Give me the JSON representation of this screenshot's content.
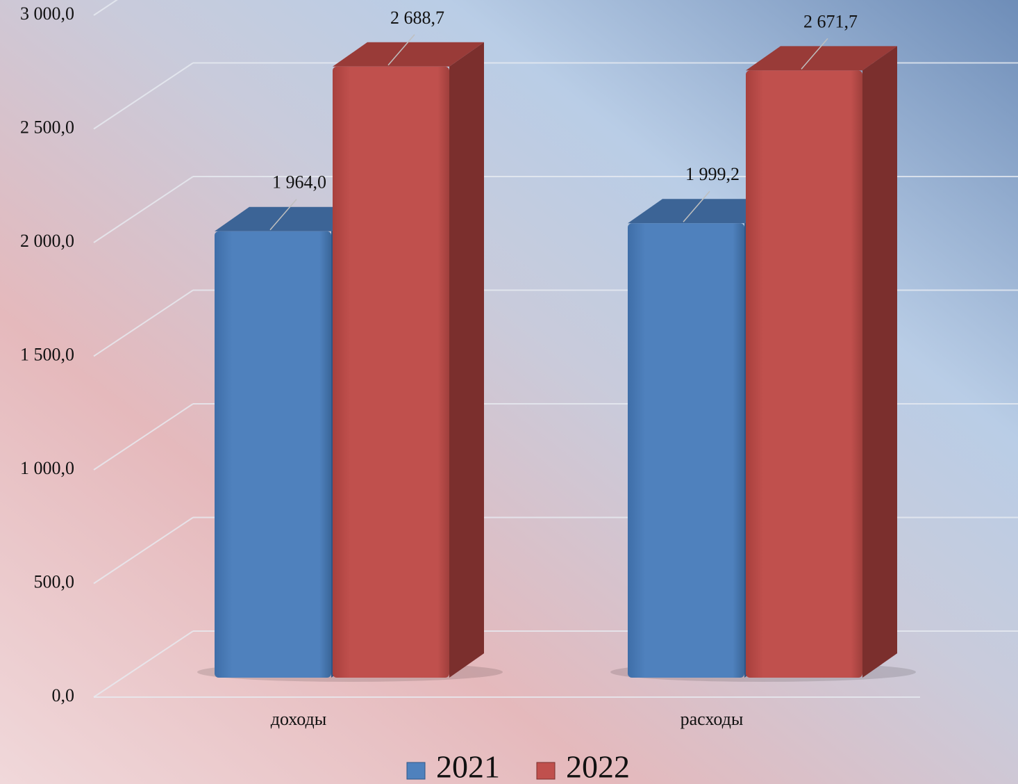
{
  "chart_data": {
    "type": "bar3d",
    "categories": [
      "доходы",
      "расходы"
    ],
    "series": [
      {
        "name": "2021",
        "color": "#4f81bd",
        "values": [
          1964.0,
          1999.2
        ],
        "value_labels": [
          "1 964,0",
          "1 999,2"
        ]
      },
      {
        "name": "2022",
        "color": "#c0504d",
        "values": [
          2688.7,
          2671.7
        ],
        "value_labels": [
          "2 688,7",
          "2 671,7"
        ]
      }
    ],
    "ylim": [
      0,
      3000
    ],
    "yticks": [
      {
        "value": 0,
        "label": "0,0"
      },
      {
        "value": 500,
        "label": "500,0"
      },
      {
        "value": 1000,
        "label": "1 000,0"
      },
      {
        "value": 1500,
        "label": "1 500,0"
      },
      {
        "value": 2000,
        "label": "2 000,0"
      },
      {
        "value": 2500,
        "label": "2 500,0"
      },
      {
        "value": 3000,
        "label": "3 000,0"
      }
    ],
    "grid": true,
    "legend": "bottom"
  }
}
